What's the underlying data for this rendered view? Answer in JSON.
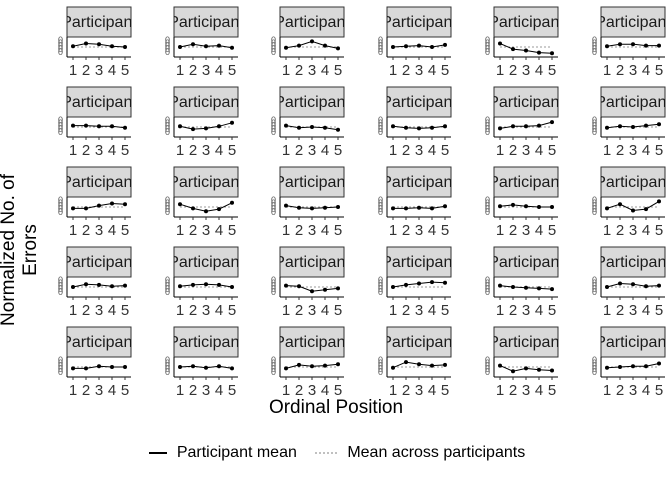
{
  "chart_data": {
    "type": "line",
    "facet_strip_label": "Participant",
    "x": [
      1,
      2,
      3,
      4,
      5
    ],
    "x_tick_labels": [
      "1",
      "2",
      "3",
      "4",
      "5"
    ],
    "y_tick_labels": [
      "0",
      "0",
      "0",
      "0",
      "0"
    ],
    "xlabel": "Ordinal Position",
    "ylabel": "Normalized No. of Errors",
    "ylim": [
      0,
      1
    ],
    "legend": {
      "position": "bottom",
      "items": [
        {
          "label": "Participant mean",
          "style": "solid"
        },
        {
          "label": "Mean across participants",
          "style": "dotted"
        }
      ]
    },
    "mean_across_participants": [
      0.5,
      0.5,
      0.5,
      0.5,
      0.5
    ],
    "panels": [
      [
        0.55,
        0.75,
        0.7,
        0.55,
        0.5
      ],
      [
        0.5,
        0.7,
        0.55,
        0.6,
        0.45
      ],
      [
        0.45,
        0.6,
        0.9,
        0.6,
        0.4
      ],
      [
        0.5,
        0.55,
        0.6,
        0.5,
        0.65
      ],
      [
        0.75,
        0.35,
        0.25,
        0.1,
        0.05
      ],
      [
        0.55,
        0.7,
        0.7,
        0.6,
        0.6
      ],
      [
        0.6,
        0.6,
        0.55,
        0.55,
        0.45
      ],
      [
        0.55,
        0.35,
        0.4,
        0.55,
        0.8
      ],
      [
        0.6,
        0.45,
        0.5,
        0.45,
        0.3
      ],
      [
        0.55,
        0.45,
        0.4,
        0.45,
        0.55
      ],
      [
        0.4,
        0.55,
        0.55,
        0.6,
        0.85
      ],
      [
        0.45,
        0.55,
        0.5,
        0.6,
        0.7
      ],
      [
        0.4,
        0.4,
        0.6,
        0.75,
        0.7
      ],
      [
        0.7,
        0.4,
        0.2,
        0.35,
        0.8
      ],
      [
        0.6,
        0.45,
        0.4,
        0.45,
        0.5
      ],
      [
        0.4,
        0.4,
        0.45,
        0.4,
        0.55
      ],
      [
        0.55,
        0.65,
        0.55,
        0.5,
        0.5
      ],
      [
        0.4,
        0.7,
        0.25,
        0.35,
        0.9
      ],
      [
        0.5,
        0.7,
        0.65,
        0.55,
        0.6
      ],
      [
        0.55,
        0.65,
        0.7,
        0.65,
        0.5
      ],
      [
        0.6,
        0.55,
        0.2,
        0.3,
        0.4
      ],
      [
        0.5,
        0.65,
        0.75,
        0.85,
        0.8
      ],
      [
        0.6,
        0.5,
        0.45,
        0.4,
        0.35
      ],
      [
        0.5,
        0.75,
        0.7,
        0.55,
        0.6
      ],
      [
        0.4,
        0.4,
        0.55,
        0.5,
        0.5
      ],
      [
        0.5,
        0.55,
        0.45,
        0.55,
        0.4
      ],
      [
        0.4,
        0.65,
        0.55,
        0.6,
        0.7
      ],
      [
        0.45,
        0.85,
        0.7,
        0.6,
        0.65
      ],
      [
        0.6,
        0.2,
        0.4,
        0.3,
        0.25
      ],
      [
        0.45,
        0.5,
        0.55,
        0.55,
        0.75
      ]
    ]
  }
}
